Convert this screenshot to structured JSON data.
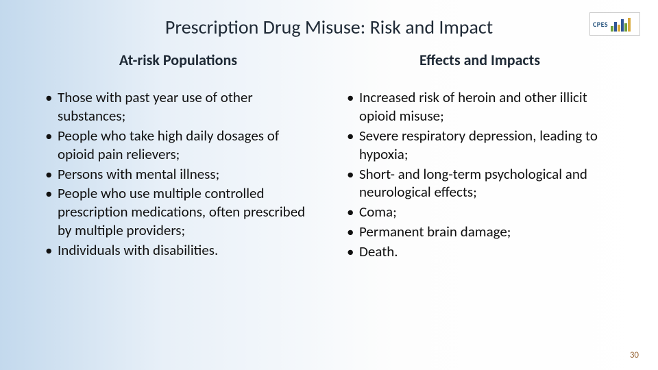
{
  "title": "Prescription Drug Misuse: Risk and Impact",
  "logo": {
    "text": "CPES",
    "bars": [
      {
        "h": 8,
        "c": "#6d9e3c"
      },
      {
        "h": 14,
        "c": "#2f5597"
      },
      {
        "h": 10,
        "c": "#d8a93a"
      },
      {
        "h": 18,
        "c": "#2f5597"
      },
      {
        "h": 12,
        "c": "#6d9e3c"
      },
      {
        "h": 20,
        "c": "#d8a93a"
      }
    ]
  },
  "left": {
    "heading": "At-risk Populations",
    "items": [
      "Those with past year use of other substances;",
      "People who take high daily dosages of opioid pain relievers;",
      "Persons with mental illness;",
      "People who use multiple controlled prescription medications, often prescribed by multiple providers;",
      "Individuals with disabilities."
    ]
  },
  "right": {
    "heading": "Effects and Impacts",
    "items": [
      "Increased risk of heroin and other illicit opioid misuse;",
      "Severe respiratory depression, leading to hypoxia;",
      "Short- and long-term psychological and neurological effects;",
      "Coma;",
      "Permanent brain damage;",
      "Death."
    ]
  },
  "page_number": "30",
  "colors": {
    "title": "#1f2a36",
    "body_text": "#111111",
    "page_num": "#9b6a3c",
    "bg_left": "#c3d9ed",
    "bg_right": "#ffffff"
  },
  "fonts": {
    "title_size_pt": 28,
    "heading_size_pt": 22,
    "body_size_pt": 21,
    "pagenum_size_pt": 13
  }
}
